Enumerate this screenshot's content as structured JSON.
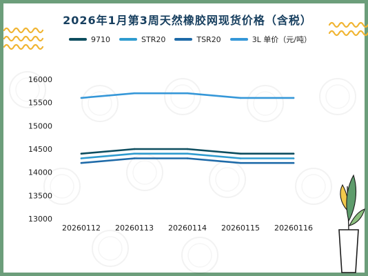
{
  "title": "2026年1月第3周天然橡胶网现货价格（含税）",
  "colors": {
    "border": "#6c9e7b",
    "wave": "#f0b431",
    "title": "#173f5f",
    "plant": "#5e9c6c"
  },
  "chart_data": {
    "type": "line",
    "categories": [
      "20260112",
      "20260113",
      "20260114",
      "20260115",
      "20260116"
    ],
    "ylim": [
      13000,
      16000
    ],
    "yticks": [
      13000,
      13500,
      14000,
      14500,
      15000,
      15500,
      16000
    ],
    "grid": false,
    "legend": "top",
    "series": [
      {
        "name": "9710",
        "color": "#0d4d5f",
        "values": [
          14400,
          14500,
          14500,
          14400,
          14400
        ]
      },
      {
        "name": "STR20",
        "color": "#2f9bcf",
        "values": [
          14300,
          14400,
          14400,
          14300,
          14300
        ]
      },
      {
        "name": "TSR20",
        "color": "#1e6aa8",
        "values": [
          14200,
          14300,
          14300,
          14200,
          14200
        ]
      },
      {
        "name": "3L 单价（元/吨）",
        "color": "#3597d8",
        "values": [
          15600,
          15700,
          15700,
          15600,
          15600
        ]
      }
    ]
  }
}
